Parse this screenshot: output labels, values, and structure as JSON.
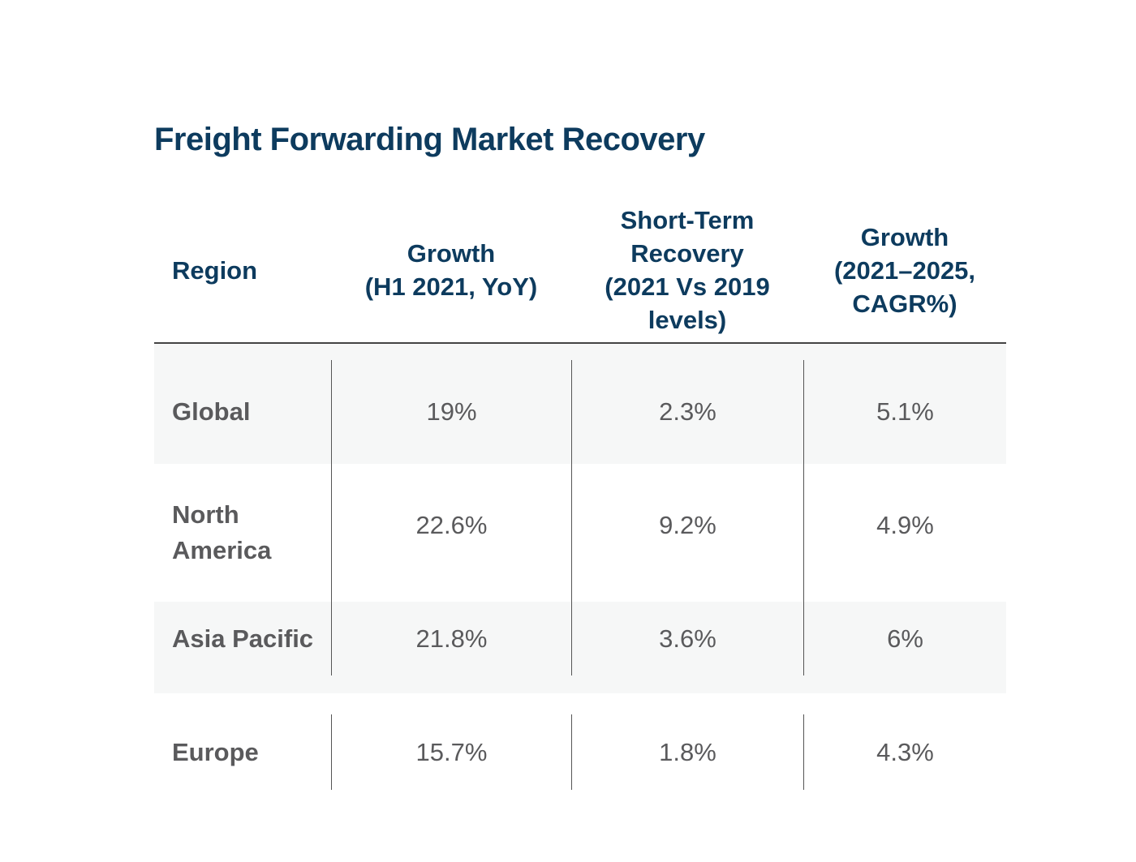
{
  "chart_data": {
    "type": "table",
    "title": "Freight Forwarding Market Recovery",
    "columns": [
      "Region",
      "Growth\n(H1 2021, YoY)",
      "Short-Term\nRecovery\n(2021 Vs 2019\nlevels)",
      "Growth\n(2021–2025,\nCAGR%)"
    ],
    "rows": [
      {
        "region": "Global",
        "values": [
          "19%",
          "2.3%",
          "5.1%"
        ]
      },
      {
        "region": "North\nAmerica",
        "values": [
          "22.6%",
          "9.2%",
          "4.9%"
        ]
      },
      {
        "region": "Asia Pacific",
        "values": [
          "21.8%",
          "3.6%",
          "6%"
        ]
      },
      {
        "region": "Europe",
        "values": [
          "15.7%",
          "1.8%",
          "4.3%"
        ]
      }
    ],
    "colors": {
      "title": "#0d3b5e",
      "header": "#0d3b5e",
      "body_text": "#5a5a5c",
      "stripe": "#f6f7f7"
    }
  }
}
